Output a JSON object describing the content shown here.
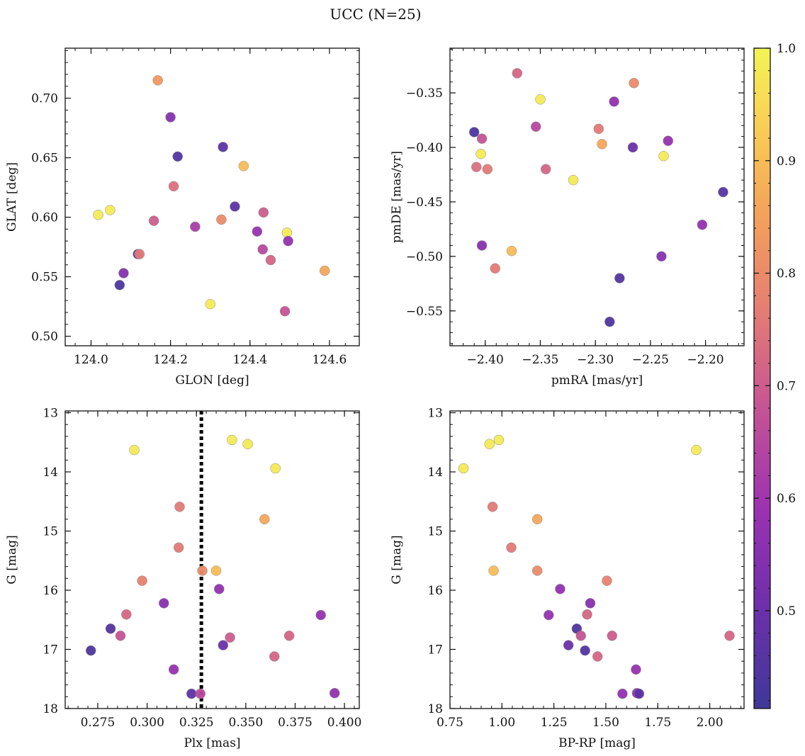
{
  "figure": {
    "title": "UCC (N=25)"
  },
  "colorbar": {
    "range": [
      0.413,
      1.0
    ],
    "ticks": [
      "0.5",
      "0.6",
      "0.7",
      "0.8",
      "0.9",
      "1.0"
    ],
    "tick_values": [
      0.5,
      0.6,
      0.7,
      0.8,
      0.9,
      1.0
    ],
    "colormap": "plasma (truncated)"
  },
  "chart_data": [
    {
      "type": "scatter",
      "xlabel": "GLON [deg]",
      "ylabel": "GLAT [deg]",
      "xlim": [
        123.935,
        124.675
      ],
      "ylim": [
        0.492,
        0.742
      ],
      "xticks": [
        124.0,
        124.2,
        124.4,
        124.6
      ],
      "xtick_labels": [
        "124.0",
        "124.2",
        "124.4",
        "124.6"
      ],
      "yticks": [
        0.5,
        0.55,
        0.6,
        0.65,
        0.7
      ],
      "ytick_labels": [
        "0.50",
        "0.55",
        "0.60",
        "0.65",
        "0.70"
      ],
      "x": [
        124.018,
        124.048,
        124.072,
        124.082,
        124.118,
        124.122,
        124.158,
        124.168,
        124.2,
        124.208,
        124.218,
        124.262,
        124.3,
        124.328,
        124.332,
        124.362,
        124.384,
        124.418,
        124.432,
        124.434,
        124.452,
        124.488,
        124.493,
        124.496,
        124.588
      ],
      "y": [
        0.602,
        0.606,
        0.543,
        0.553,
        0.569,
        0.569,
        0.597,
        0.715,
        0.684,
        0.626,
        0.651,
        0.592,
        0.527,
        0.598,
        0.659,
        0.609,
        0.643,
        0.588,
        0.573,
        0.604,
        0.564,
        0.521,
        0.587,
        0.58,
        0.555
      ],
      "prob": [
        0.98,
        0.98,
        0.44,
        0.55,
        0.46,
        0.76,
        0.7,
        0.83,
        0.55,
        0.74,
        0.45,
        0.62,
        0.98,
        0.8,
        0.47,
        0.47,
        0.9,
        0.58,
        0.65,
        0.7,
        0.72,
        0.68,
        0.98,
        0.57,
        0.86
      ]
    },
    {
      "type": "scatter",
      "xlabel": "pmRA [mas/yr]",
      "ylabel": "pmDE [mas/yr]",
      "xlim": [
        -2.432,
        -2.165
      ],
      "ylim": [
        -0.582,
        -0.309
      ],
      "xticks": [
        -2.4,
        -2.35,
        -2.3,
        -2.25,
        -2.2
      ],
      "xtick_labels": [
        "−2.40",
        "−2.35",
        "−2.30",
        "−2.25",
        "−2.20"
      ],
      "yticks": [
        -0.55,
        -0.5,
        -0.45,
        -0.4,
        -0.35
      ],
      "ytick_labels": [
        "−0.55",
        "−0.50",
        "−0.45",
        "−0.40",
        "−0.35"
      ],
      "x": [
        -2.41,
        -2.403,
        -2.404,
        -2.408,
        -2.398,
        -2.403,
        -2.376,
        -2.391,
        -2.371,
        -2.35,
        -2.354,
        -2.345,
        -2.32,
        -2.297,
        -2.294,
        -2.287,
        -2.278,
        -2.283,
        -2.265,
        -2.266,
        -2.238,
        -2.24,
        -2.234,
        -2.203,
        -2.184
      ],
      "y": [
        -0.386,
        -0.392,
        -0.406,
        -0.418,
        -0.42,
        -0.49,
        -0.495,
        -0.511,
        -0.332,
        -0.356,
        -0.381,
        -0.42,
        -0.43,
        -0.383,
        -0.397,
        -0.56,
        -0.52,
        -0.358,
        -0.341,
        -0.4,
        -0.408,
        -0.5,
        -0.394,
        -0.471,
        -0.441
      ],
      "prob": [
        0.44,
        0.68,
        0.98,
        0.74,
        0.76,
        0.55,
        0.9,
        0.76,
        0.72,
        0.98,
        0.65,
        0.72,
        0.98,
        0.76,
        0.86,
        0.44,
        0.45,
        0.57,
        0.8,
        0.5,
        0.98,
        0.55,
        0.58,
        0.58,
        0.46
      ]
    },
    {
      "type": "scatter",
      "xlabel": "Plx [mas]",
      "ylabel": "G [mag]",
      "xlim": [
        0.2585,
        0.4075
      ],
      "ylim": [
        18.0,
        12.97
      ],
      "y_inverted": true,
      "xticks": [
        0.275,
        0.3,
        0.325,
        0.35,
        0.375,
        0.4
      ],
      "xtick_labels": [
        "0.275",
        "0.300",
        "0.325",
        "0.350",
        "0.375",
        "0.400"
      ],
      "yticks": [
        13,
        14,
        15,
        16,
        17,
        18
      ],
      "ytick_labels": [
        "13",
        "14",
        "15",
        "16",
        "17",
        "18"
      ],
      "reference_line": {
        "axis": "x",
        "value": 0.3275,
        "style": "dotted"
      },
      "x": [
        0.2715,
        0.2815,
        0.2865,
        0.2895,
        0.2935,
        0.2975,
        0.3085,
        0.3135,
        0.316,
        0.3165,
        0.3225,
        0.327,
        0.328,
        0.335,
        0.3365,
        0.3385,
        0.342,
        0.343,
        0.351,
        0.3595,
        0.3645,
        0.365,
        0.372,
        0.388,
        0.395
      ],
      "y": [
        17.02,
        16.65,
        16.77,
        16.41,
        13.63,
        15.84,
        16.22,
        17.34,
        15.28,
        14.59,
        17.75,
        17.75,
        15.67,
        15.67,
        15.98,
        16.93,
        16.8,
        13.46,
        13.53,
        14.8,
        17.12,
        13.94,
        16.77,
        16.42,
        17.74
      ],
      "prob": [
        0.44,
        0.45,
        0.68,
        0.72,
        0.98,
        0.78,
        0.55,
        0.58,
        0.76,
        0.76,
        0.47,
        0.65,
        0.8,
        0.9,
        0.57,
        0.5,
        0.7,
        0.98,
        0.98,
        0.86,
        0.72,
        0.98,
        0.72,
        0.58,
        0.57
      ]
    },
    {
      "type": "scatter",
      "xlabel": "BP-RP [mag]",
      "ylabel": "G [mag]",
      "xlim": [
        0.75,
        2.165
      ],
      "ylim": [
        18.0,
        12.97
      ],
      "y_inverted": true,
      "xticks": [
        0.75,
        1.0,
        1.25,
        1.5,
        1.75,
        2.0
      ],
      "xtick_labels": [
        "0.75",
        "1.00",
        "1.25",
        "1.50",
        "1.75",
        "2.00"
      ],
      "yticks": [
        13,
        14,
        15,
        16,
        17,
        18
      ],
      "ytick_labels": [
        "13",
        "14",
        "15",
        "16",
        "17",
        "18"
      ],
      "x": [
        0.815,
        0.94,
        0.985,
        0.955,
        0.96,
        1.045,
        1.17,
        1.17,
        1.225,
        1.28,
        1.32,
        1.36,
        1.38,
        1.4,
        1.41,
        1.425,
        1.46,
        1.505,
        1.53,
        1.58,
        1.645,
        1.65,
        1.66,
        1.935,
        2.095
      ],
      "y": [
        13.94,
        13.53,
        13.46,
        14.59,
        15.67,
        15.28,
        14.8,
        15.67,
        16.42,
        15.98,
        16.93,
        16.65,
        16.77,
        17.02,
        16.41,
        16.22,
        17.12,
        15.84,
        16.77,
        17.75,
        17.34,
        17.74,
        17.75,
        13.63,
        16.77
      ],
      "prob": [
        0.98,
        0.98,
        0.98,
        0.76,
        0.9,
        0.76,
        0.86,
        0.8,
        0.58,
        0.57,
        0.5,
        0.44,
        0.68,
        0.45,
        0.72,
        0.55,
        0.72,
        0.78,
        0.7,
        0.57,
        0.58,
        0.57,
        0.47,
        0.98,
        0.72
      ]
    }
  ]
}
